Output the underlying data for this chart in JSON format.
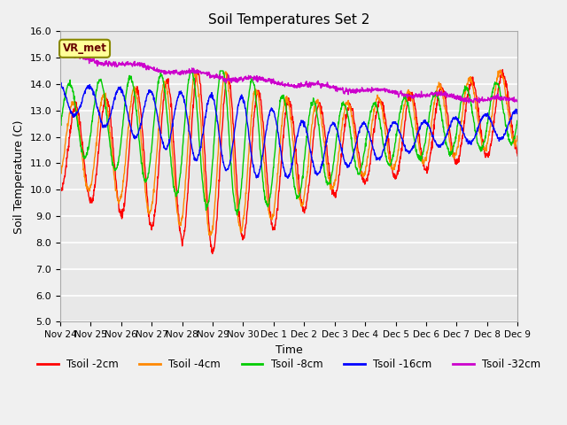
{
  "title": "Soil Temperatures Set 2",
  "xlabel": "Time",
  "ylabel": "Soil Temperature (C)",
  "ylim": [
    5.0,
    16.0
  ],
  "yticks": [
    5.0,
    6.0,
    7.0,
    8.0,
    9.0,
    10.0,
    11.0,
    12.0,
    13.0,
    14.0,
    15.0,
    16.0
  ],
  "xtick_labels": [
    "Nov 24",
    "Nov 25",
    "Nov 26",
    "Nov 27",
    "Nov 28",
    "Nov 29",
    "Nov 30",
    "Dec 1",
    "Dec 2",
    "Dec 3",
    "Dec 4",
    "Dec 5",
    "Dec 6",
    "Dec 7",
    "Dec 8",
    "Dec 9"
  ],
  "colors": {
    "Tsoil -2cm": "#ff0000",
    "Tsoil -4cm": "#ff8800",
    "Tsoil -8cm": "#00cc00",
    "Tsoil -16cm": "#0000ff",
    "Tsoil -32cm": "#cc00cc"
  },
  "legend_label": "VR_met",
  "fig_bg_color": "#f0f0f0",
  "plot_bg_color": "#e8e8e8",
  "grid_color": "#ffffff"
}
